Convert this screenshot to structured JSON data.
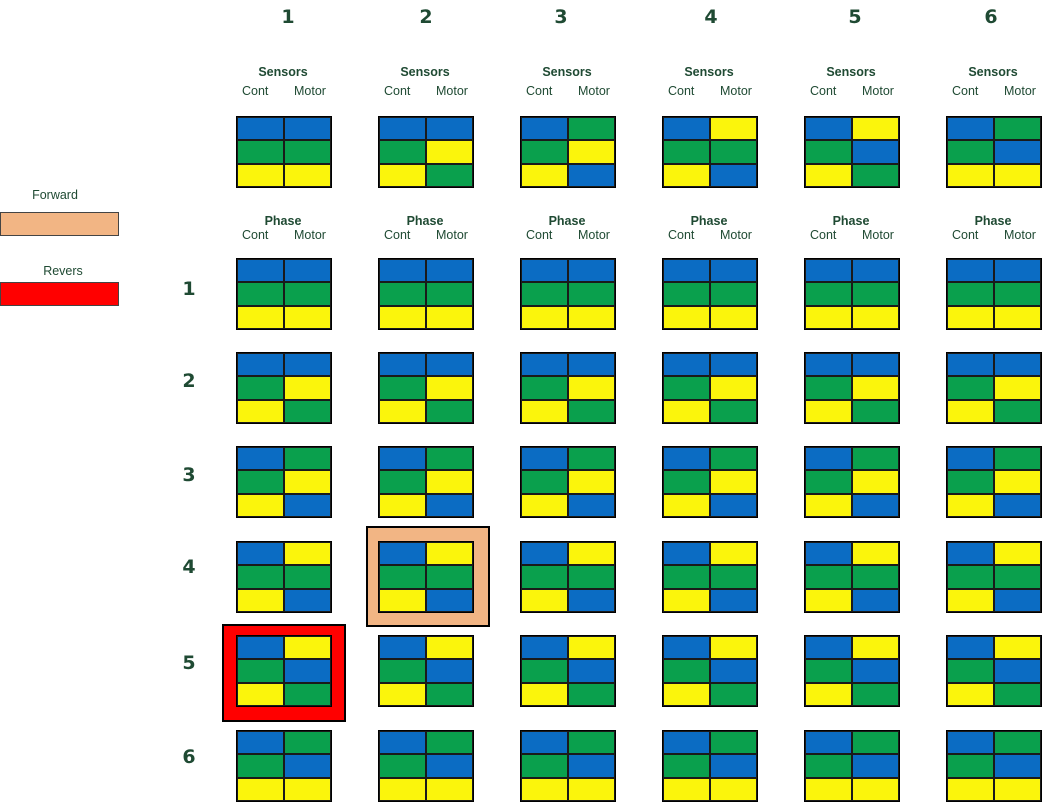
{
  "column_numbers": [
    "1",
    "2",
    "3",
    "4",
    "5",
    "6"
  ],
  "row_numbers": [
    "1",
    "2",
    "3",
    "4",
    "5",
    "6"
  ],
  "sensors_header": {
    "title": "Sensors",
    "left": "Cont",
    "right": "Motor"
  },
  "phase_header": {
    "title": "Phase",
    "left": "Cont",
    "right": "Motor"
  },
  "legend": {
    "forward": {
      "label": "Forward",
      "color": "#f2b584"
    },
    "reverse": {
      "label": "Revers",
      "color": "#ff0000"
    }
  },
  "colors": {
    "blue": "#0b6cc3",
    "green": "#0aa04d",
    "yellow": "#fbf50c"
  },
  "sensor_patterns": [
    [
      "B",
      "B",
      "G",
      "G",
      "Y",
      "Y"
    ],
    [
      "B",
      "B",
      "G",
      "Y",
      "Y",
      "G"
    ],
    [
      "B",
      "G",
      "G",
      "Y",
      "Y",
      "B"
    ],
    [
      "B",
      "Y",
      "G",
      "G",
      "Y",
      "B"
    ],
    [
      "B",
      "Y",
      "G",
      "B",
      "Y",
      "G"
    ],
    [
      "B",
      "G",
      "G",
      "B",
      "Y",
      "Y"
    ]
  ],
  "phase_rows": [
    [
      "B",
      "B",
      "G",
      "G",
      "Y",
      "Y"
    ],
    [
      "B",
      "B",
      "G",
      "Y",
      "Y",
      "G"
    ],
    [
      "B",
      "G",
      "G",
      "Y",
      "Y",
      "B"
    ],
    [
      "B",
      "Y",
      "G",
      "G",
      "Y",
      "B"
    ],
    [
      "B",
      "Y",
      "G",
      "B",
      "Y",
      "G"
    ],
    [
      "B",
      "G",
      "G",
      "B",
      "Y",
      "Y"
    ]
  ],
  "highlights": {
    "forward": {
      "row": 4,
      "col": 2
    },
    "reverse": {
      "row": 5,
      "col": 1
    }
  }
}
